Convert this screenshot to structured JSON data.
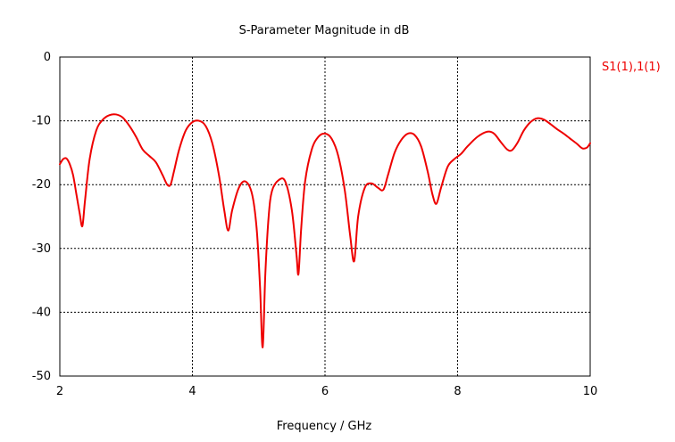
{
  "chart_data": {
    "type": "line",
    "title": "S-Parameter Magnitude in dB",
    "xlabel": "Frequency / GHz",
    "ylabel": "",
    "xlim": [
      2,
      10
    ],
    "ylim": [
      -50,
      0
    ],
    "xticks": [
      2,
      4,
      6,
      8,
      10
    ],
    "yticks": [
      0,
      -10,
      -20,
      -30,
      -40,
      -50
    ],
    "xtick_labels": [
      "2",
      "4",
      "6",
      "8",
      "10"
    ],
    "ytick_labels": [
      "0",
      "-10",
      "-20",
      "-30",
      "-40",
      "-50"
    ],
    "grid": true,
    "legend_position": "top-right outside",
    "series": [
      {
        "name": "S1(1),1(1)",
        "color": "#ee0000",
        "x": [
          2.0,
          2.05,
          2.1,
          2.15,
          2.2,
          2.25,
          2.3,
          2.34,
          2.38,
          2.45,
          2.55,
          2.65,
          2.75,
          2.85,
          2.95,
          3.05,
          3.15,
          3.25,
          3.35,
          3.45,
          3.55,
          3.62,
          3.67,
          3.72,
          3.8,
          3.9,
          4.0,
          4.1,
          4.2,
          4.3,
          4.4,
          4.48,
          4.54,
          4.6,
          4.7,
          4.8,
          4.9,
          4.97,
          5.02,
          5.06,
          5.1,
          5.15,
          5.2,
          5.3,
          5.4,
          5.5,
          5.57,
          5.6,
          5.64,
          5.7,
          5.8,
          5.9,
          6.0,
          6.1,
          6.2,
          6.3,
          6.38,
          6.44,
          6.5,
          6.6,
          6.7,
          6.8,
          6.88,
          6.95,
          7.05,
          7.15,
          7.25,
          7.35,
          7.45,
          7.55,
          7.62,
          7.68,
          7.75,
          7.85,
          7.95,
          8.05,
          8.15,
          8.3,
          8.45,
          8.55,
          8.65,
          8.75,
          8.82,
          8.9,
          9.0,
          9.1,
          9.2,
          9.3,
          9.4,
          9.5,
          9.6,
          9.7,
          9.8,
          9.88,
          9.95,
          10.0
        ],
        "y": [
          -16.8,
          -16.0,
          -15.9,
          -16.8,
          -18.5,
          -21.5,
          -24.5,
          -26.5,
          -22.5,
          -16.0,
          -11.5,
          -9.8,
          -9.1,
          -9.0,
          -9.5,
          -10.8,
          -12.5,
          -14.5,
          -15.5,
          -16.5,
          -18.5,
          -20.0,
          -20.0,
          -18.0,
          -14.5,
          -11.5,
          -10.2,
          -10.0,
          -10.8,
          -13.5,
          -18.5,
          -24.0,
          -27.2,
          -24.0,
          -20.5,
          -19.5,
          -21.5,
          -27.0,
          -36.0,
          -45.5,
          -34.0,
          -25.0,
          -21.0,
          -19.3,
          -19.5,
          -24.0,
          -31.0,
          -34.0,
          -27.0,
          -19.5,
          -14.5,
          -12.5,
          -12.0,
          -12.8,
          -15.5,
          -21.0,
          -28.0,
          -32.0,
          -25.0,
          -20.5,
          -19.8,
          -20.5,
          -20.8,
          -18.5,
          -15.0,
          -13.0,
          -12.0,
          -12.2,
          -14.0,
          -18.0,
          -21.5,
          -23.0,
          -20.5,
          -17.2,
          -16.0,
          -15.2,
          -14.0,
          -12.5,
          -11.7,
          -12.0,
          -13.3,
          -14.5,
          -14.6,
          -13.5,
          -11.5,
          -10.2,
          -9.6,
          -9.8,
          -10.5,
          -11.3,
          -12.0,
          -12.8,
          -13.6,
          -14.3,
          -14.2,
          -13.5
        ]
      }
    ]
  }
}
